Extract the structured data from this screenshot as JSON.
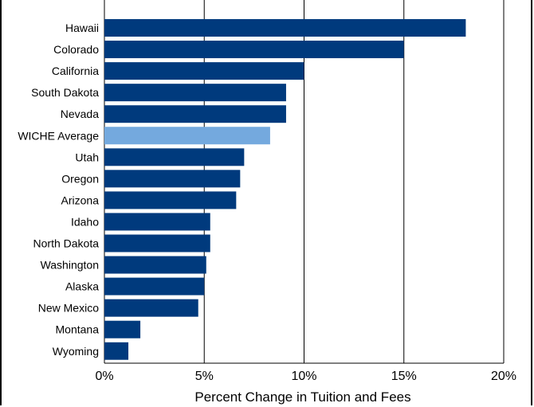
{
  "chart_data": {
    "type": "bar",
    "orientation": "horizontal",
    "title": "",
    "xlabel": "Percent Change in Tuition and Fees",
    "ylabel": "",
    "xlim": [
      0,
      20
    ],
    "xticks": [
      "0%",
      "5%",
      "10%",
      "15%",
      "20%"
    ],
    "grid": "vertical",
    "categories": [
      "Hawaii",
      "Colorado",
      "California",
      "South Dakota",
      "Nevada",
      "WICHE Average",
      "Utah",
      "Oregon",
      "Arizona",
      "Idaho",
      "North Dakota",
      "Washington",
      "Alaska",
      "New Mexico",
      "Montana",
      "Wyoming"
    ],
    "values": [
      18.1,
      15.0,
      10.0,
      9.1,
      9.1,
      8.3,
      7.0,
      6.8,
      6.6,
      5.3,
      5.3,
      5.1,
      5.0,
      4.7,
      1.8,
      1.2
    ],
    "highlight": "WICHE Average",
    "colors": {
      "bar": "#003a7d",
      "highlight": "#74a9de",
      "grid": "#000000"
    }
  }
}
